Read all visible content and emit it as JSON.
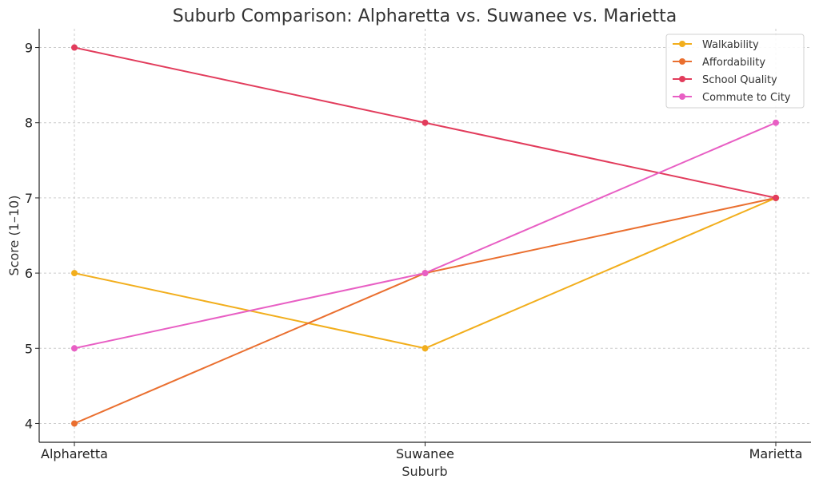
{
  "chart_data": {
    "type": "line",
    "title": "Suburb Comparison: Alpharetta vs. Suwanee vs. Marietta",
    "xlabel": "Suburb",
    "ylabel": "Score (1–10)",
    "categories": [
      "Alpharetta",
      "Suwanee",
      "Marietta"
    ],
    "ylim": [
      3.75,
      9.25
    ],
    "yticks": [
      4,
      5,
      6,
      7,
      8,
      9
    ],
    "grid": true,
    "legend_position": "top-right",
    "series": [
      {
        "name": "Walkability",
        "values": [
          6,
          5,
          7
        ],
        "color": "#f2ae1c"
      },
      {
        "name": "Affordability",
        "values": [
          4,
          6,
          7
        ],
        "color": "#ea6f2f"
      },
      {
        "name": "School Quality",
        "values": [
          9,
          8,
          7
        ],
        "color": "#e23c5c"
      },
      {
        "name": "Commute to City",
        "values": [
          5,
          6,
          8
        ],
        "color": "#e85fc4"
      }
    ]
  }
}
